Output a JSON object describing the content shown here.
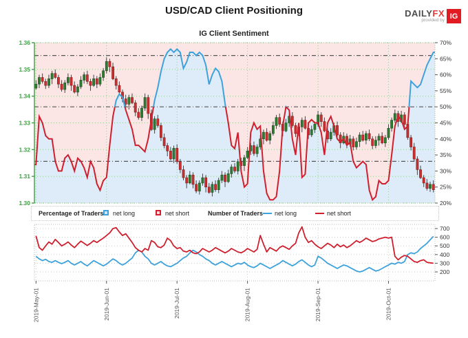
{
  "header": {
    "title": "USD/CAD Client Positioning"
  },
  "logo": {
    "brand": "DAILY",
    "brand_accent": "FX",
    "provided_by": "provided by",
    "ig_badge": "IG"
  },
  "colors": {
    "blue_line": "#3da2dc",
    "red_line": "#cf1f2e",
    "blue_fill": "#ddecf8",
    "pink_fill": "#fbe5e5",
    "green_axis": "#3fa044",
    "grid_green": "#8fce8f",
    "candle_up": "#2f7d33",
    "candle_up_border": "#1c4d20",
    "candle_down": "#cc2f2f",
    "candle_down_border": "#7c1f1f",
    "wick": "#444444",
    "refline": "#555555",
    "grid_gray": "#cccccc",
    "axis_text": "#333333",
    "date_text": "#555555"
  },
  "legend": {
    "percent_group_label": "Percentage of Traders",
    "percent_net_long": "net long",
    "percent_net_short": "net short",
    "count_group_label": "Number of Traders",
    "count_net_long": "net long",
    "count_net_short": "net short"
  },
  "chart_data": [
    {
      "type": "candlestick+line",
      "title": "IG Client Sentiment",
      "price_axis": {
        "side": "left",
        "range": [
          1.3,
          1.36
        ],
        "ticks": [
          "1.36",
          "1.35",
          "1.34",
          "1.33",
          "1.32",
          "1.31",
          "1.30"
        ]
      },
      "pct_axis": {
        "side": "right",
        "range": [
          20,
          70
        ],
        "ticks": [
          "70%",
          "65%",
          "60%",
          "55%",
          "50%",
          "45%",
          "40%",
          "35%",
          "30%",
          "25%",
          "20%"
        ]
      },
      "x_ticks": {
        "labels": [
          "2019-May-01",
          "2019-Jun-01",
          "2019-Jul-01",
          "2019-Aug-01",
          "2019-Sep-01",
          "2019-Oct-01"
        ],
        "day_index": [
          0,
          22,
          44,
          66,
          88,
          110
        ]
      },
      "reference_pct_lines": [
        66,
        50,
        33
      ],
      "candle_first_open": 1.343,
      "wick_extents": [
        0.0008,
        0.0015,
        0.0005,
        0.002,
        0.001,
        0.0013
      ],
      "candles_close": [
        1.3445,
        1.347,
        1.3455,
        1.344,
        1.3465,
        1.3485,
        1.347,
        1.3445,
        1.3425,
        1.345,
        1.347,
        1.344,
        1.3415,
        1.3435,
        1.346,
        1.348,
        1.3455,
        1.344,
        1.3465,
        1.3445,
        1.347,
        1.3495,
        1.353,
        1.351,
        1.3465,
        1.344,
        1.3415,
        1.339,
        1.337,
        1.3395,
        1.3375,
        1.334,
        1.332,
        1.3355,
        1.3395,
        1.3335,
        1.3275,
        1.3315,
        1.329,
        1.3245,
        1.3215,
        1.3195,
        1.3165,
        1.3205,
        1.3155,
        1.3125,
        1.3095,
        1.3075,
        1.3105,
        1.307,
        1.3045,
        1.3075,
        1.3095,
        1.306,
        1.304,
        1.307,
        1.305,
        1.3085,
        1.3105,
        1.308,
        1.311,
        1.3135,
        1.312,
        1.3155,
        1.314,
        1.317,
        1.3195,
        1.3215,
        1.3185,
        1.321,
        1.324,
        1.3265,
        1.3235,
        1.326,
        1.329,
        1.332,
        1.3295,
        1.327,
        1.33,
        1.3325,
        1.329,
        1.326,
        1.3285,
        1.331,
        1.328,
        1.3255,
        1.3275,
        1.3295,
        1.333,
        1.3305,
        1.327,
        1.324,
        1.3265,
        1.329,
        1.3255,
        1.3225,
        1.325,
        1.322,
        1.324,
        1.321,
        1.323,
        1.3255,
        1.3235,
        1.326,
        1.324,
        1.3215,
        1.3235,
        1.325,
        1.3225,
        1.3245,
        1.328,
        1.331,
        1.3335,
        1.3305,
        1.333,
        1.3295,
        1.3245,
        1.321,
        1.3165,
        1.3125,
        1.3095,
        1.3075,
        1.3055,
        1.307,
        1.305
      ],
      "net_long_pct": [
        32,
        47,
        45,
        41,
        40,
        40,
        33,
        30,
        30,
        34,
        35,
        33,
        30,
        34,
        33,
        31,
        28,
        33,
        31,
        26,
        24,
        27,
        28,
        38,
        47,
        52,
        54,
        53,
        49,
        46,
        43,
        38,
        38,
        37,
        36,
        40,
        46,
        52,
        56,
        61,
        65,
        67,
        68,
        67,
        68,
        67,
        62,
        64,
        67,
        67,
        66,
        67,
        66,
        63,
        57,
        60,
        62,
        61,
        58,
        51,
        45,
        38,
        37,
        42,
        30,
        25,
        26,
        42,
        45,
        43,
        44,
        30,
        23,
        21,
        21,
        22,
        30,
        44,
        50,
        49,
        40,
        35,
        45,
        28,
        29,
        45,
        46,
        45,
        45,
        42,
        35,
        45,
        47,
        44,
        40,
        39,
        40,
        38,
        39,
        33,
        31,
        32,
        33,
        32,
        24,
        21,
        22,
        27,
        26,
        26,
        27,
        35,
        44,
        47,
        46,
        43,
        44,
        58,
        57,
        56,
        57,
        60,
        63,
        65,
        67
      ]
    },
    {
      "type": "line",
      "count_axis": {
        "side": "right",
        "range": [
          200,
          700
        ],
        "ticks": [
          700,
          600,
          500,
          400,
          300,
          200
        ]
      },
      "series": [
        {
          "name": "net long",
          "color_key": "blue_line",
          "values": [
            380,
            350,
            330,
            345,
            320,
            310,
            330,
            310,
            295,
            310,
            330,
            300,
            280,
            300,
            320,
            290,
            270,
            300,
            330,
            310,
            290,
            270,
            290,
            320,
            350,
            330,
            300,
            280,
            300,
            330,
            360,
            420,
            450,
            430,
            380,
            350,
            300,
            280,
            300,
            320,
            290,
            270,
            260,
            280,
            300,
            330,
            360,
            380,
            420,
            450,
            430,
            400,
            380,
            350,
            330,
            300,
            280,
            300,
            320,
            300,
            280,
            260,
            280,
            300,
            290,
            310,
            280,
            260,
            250,
            270,
            300,
            280,
            260,
            240,
            260,
            280,
            300,
            330,
            310,
            290,
            270,
            290,
            320,
            340,
            310,
            280,
            260,
            280,
            380,
            360,
            330,
            300,
            280,
            260,
            240,
            260,
            280,
            270,
            250,
            230,
            210,
            200,
            210,
            230,
            250,
            230,
            210,
            220,
            240,
            260,
            280,
            300,
            290,
            310,
            300,
            320,
            400,
            420,
            410,
            430,
            470,
            500,
            530,
            570,
            610
          ]
        },
        {
          "name": "net short",
          "color_key": "red_line",
          "values": [
            615,
            480,
            450,
            500,
            545,
            520,
            575,
            540,
            500,
            520,
            545,
            510,
            480,
            520,
            555,
            530,
            505,
            530,
            560,
            540,
            565,
            590,
            620,
            650,
            700,
            710,
            660,
            620,
            640,
            590,
            540,
            480,
            450,
            430,
            470,
            450,
            560,
            540,
            490,
            480,
            510,
            590,
            560,
            500,
            470,
            480,
            440,
            430,
            450,
            420,
            410,
            430,
            470,
            450,
            430,
            450,
            480,
            460,
            440,
            420,
            440,
            470,
            450,
            430,
            420,
            440,
            470,
            450,
            430,
            460,
            620,
            520,
            430,
            480,
            460,
            440,
            480,
            500,
            480,
            460,
            500,
            530,
            650,
            720,
            600,
            540,
            560,
            520,
            490,
            470,
            500,
            530,
            510,
            480,
            520,
            490,
            510,
            480,
            500,
            530,
            560,
            540,
            560,
            590,
            570,
            550,
            560,
            580,
            590,
            600,
            590,
            600,
            380,
            340,
            370,
            390,
            380,
            350,
            320,
            310,
            330,
            340,
            310,
            305,
            300
          ]
        }
      ]
    }
  ]
}
